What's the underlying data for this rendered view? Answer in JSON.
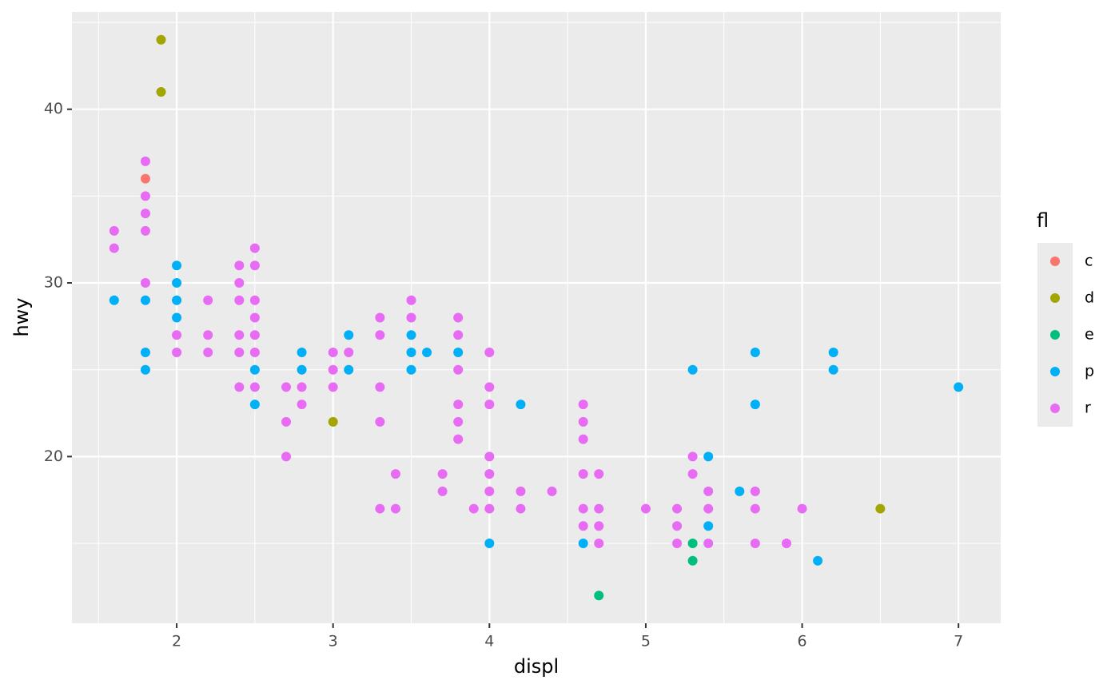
{
  "chart_data": {
    "type": "scatter",
    "x_label": "displ",
    "y_label": "hwy",
    "legend_title": "fl",
    "xlim": [
      1.33,
      7.27
    ],
    "ylim": [
      10.4,
      45.6
    ],
    "xticks": [
      2,
      3,
      4,
      5,
      6,
      7
    ],
    "yticks": [
      20,
      30,
      40
    ],
    "grid": true,
    "legend_position": "right",
    "series": [
      {
        "name": "c",
        "color": "#F8766D",
        "x": [
          1.8
        ],
        "values": [
          36
        ]
      },
      {
        "name": "d",
        "color": "#A3A500",
        "x": [
          1.9,
          1.9,
          3.0,
          6.5
        ],
        "values": [
          44,
          41,
          22,
          17
        ]
      },
      {
        "name": "e",
        "color": "#00BF7D",
        "x": [
          4.7,
          5.3,
          5.3
        ],
        "values": [
          12,
          15,
          14
        ]
      },
      {
        "name": "p",
        "color": "#00B0F6",
        "x": [
          1.6,
          1.8,
          1.8,
          1.8,
          2.0,
          2.0,
          2.0,
          2.0,
          2.5,
          2.5,
          2.8,
          2.8,
          3.1,
          3.1,
          3.5,
          3.5,
          3.5,
          3.6,
          3.8,
          4.0,
          4.2,
          4.6,
          5.3,
          5.4,
          5.4,
          5.6,
          5.7,
          5.7,
          6.1,
          6.2,
          6.2,
          7.0
        ],
        "values": [
          29,
          29,
          26,
          25,
          31,
          30,
          29,
          28,
          25,
          23,
          26,
          25,
          27,
          25,
          27,
          26,
          25,
          26,
          26,
          15,
          23,
          15,
          25,
          20,
          16,
          18,
          26,
          23,
          14,
          26,
          25,
          24
        ]
      },
      {
        "name": "r",
        "color": "#E76BF3",
        "x": [
          1.6,
          1.6,
          1.8,
          1.8,
          1.8,
          1.8,
          1.8,
          2.0,
          2.0,
          2.2,
          2.2,
          2.2,
          2.4,
          2.4,
          2.4,
          2.4,
          2.4,
          2.4,
          2.5,
          2.5,
          2.5,
          2.5,
          2.5,
          2.5,
          2.5,
          2.7,
          2.7,
          2.7,
          2.8,
          2.8,
          3.0,
          3.0,
          3.0,
          3.1,
          3.3,
          3.3,
          3.3,
          3.3,
          3.3,
          3.4,
          3.4,
          3.5,
          3.5,
          3.7,
          3.7,
          3.8,
          3.8,
          3.8,
          3.8,
          3.8,
          3.8,
          3.9,
          4.0,
          4.0,
          4.0,
          4.0,
          4.0,
          4.0,
          4.0,
          4.2,
          4.2,
          4.4,
          4.6,
          4.6,
          4.6,
          4.6,
          4.6,
          4.6,
          4.7,
          4.7,
          4.7,
          4.7,
          5.0,
          5.2,
          5.2,
          5.2,
          5.3,
          5.3,
          5.4,
          5.4,
          5.4,
          5.7,
          5.7,
          5.7,
          5.9,
          6.0
        ],
        "values": [
          33,
          32,
          37,
          35,
          34,
          33,
          30,
          27,
          26,
          29,
          27,
          26,
          31,
          30,
          29,
          27,
          26,
          24,
          32,
          31,
          29,
          28,
          27,
          26,
          24,
          24,
          22,
          20,
          24,
          23,
          26,
          25,
          24,
          26,
          28,
          27,
          24,
          22,
          17,
          19,
          17,
          29,
          28,
          19,
          18,
          28,
          27,
          25,
          23,
          22,
          21,
          17,
          26,
          24,
          23,
          20,
          19,
          18,
          17,
          18,
          17,
          18,
          23,
          22,
          21,
          19,
          17,
          16,
          19,
          17,
          16,
          15,
          17,
          17,
          16,
          15,
          20,
          19,
          18,
          17,
          15,
          18,
          17,
          15,
          15,
          17
        ]
      }
    ]
  }
}
